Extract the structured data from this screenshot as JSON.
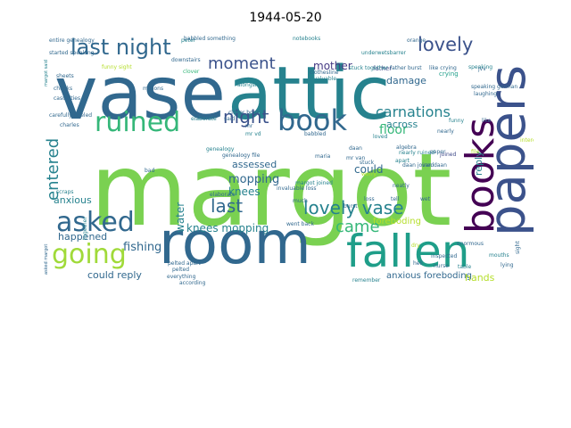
{
  "title": "1944-05-20",
  "palette": {
    "dark_purple": "#440154",
    "indigo": "#3b528b",
    "slate_blue": "#31688e",
    "teal": "#26828e",
    "sea_green": "#1f9e89",
    "green": "#35b779",
    "light_green": "#6ece58",
    "lime": "#b5de2b",
    "yellow": "#fde725"
  },
  "words": [
    {
      "text": "margot",
      "color": "#7ad151"
    },
    {
      "text": "vase",
      "color": "#31688e"
    },
    {
      "text": "attic",
      "color": "#26828e"
    },
    {
      "text": "room",
      "color": "#31688e"
    },
    {
      "text": "papers",
      "color": "#3b528b"
    },
    {
      "text": "fallen",
      "color": "#1f9e89"
    },
    {
      "text": "books",
      "color": "#440154"
    },
    {
      "text": "book",
      "color": "#31688e"
    },
    {
      "text": "asked",
      "color": "#31688e"
    },
    {
      "text": "ruined",
      "color": "#35b779"
    },
    {
      "text": "going",
      "color": "#a0da39"
    },
    {
      "text": "last night",
      "color": "#31688e"
    },
    {
      "text": "lovely",
      "color": "#3b528b"
    },
    {
      "text": "noticed",
      "color": "#26828e"
    },
    {
      "text": "lovely vase",
      "color": "#26828e"
    },
    {
      "text": "moment",
      "color": "#3b528b"
    },
    {
      "text": "night",
      "color": "#3b528b"
    },
    {
      "text": "entered",
      "color": "#26828e"
    },
    {
      "text": "carnations",
      "color": "#26828e"
    },
    {
      "text": "last",
      "color": "#31688e"
    },
    {
      "text": "came",
      "color": "#35b779"
    },
    {
      "text": "floor",
      "color": "#35b779"
    },
    {
      "text": "mopping",
      "color": "#31688e"
    },
    {
      "text": "knees",
      "color": "#26828e"
    },
    {
      "text": "knees mopping",
      "color": "#26828e"
    },
    {
      "text": "fishing",
      "color": "#31688e"
    },
    {
      "text": "mother",
      "color": "#443983"
    },
    {
      "text": "damage",
      "color": "#31688e"
    },
    {
      "text": "across",
      "color": "#26828e"
    },
    {
      "text": "could",
      "color": "#31688e"
    },
    {
      "text": "assessed",
      "color": "#31688e"
    },
    {
      "text": "water",
      "color": "#26828e"
    },
    {
      "text": "anxious",
      "color": "#26828e"
    },
    {
      "text": "foreboding",
      "color": "#b5de2b"
    },
    {
      "text": "happened",
      "color": "#31688e"
    },
    {
      "text": "could reply",
      "color": "#31688e"
    },
    {
      "text": "anxious foreboding",
      "color": "#31688e"
    },
    {
      "text": "hands",
      "color": "#b5de2b"
    },
    {
      "text": "reply",
      "color": "#26828e"
    },
    {
      "text": "father",
      "color": "#3e4989"
    },
    {
      "text": "charles",
      "color": "#31688e"
    },
    {
      "text": "peter",
      "color": "#26828e"
    },
    {
      "text": "algebra",
      "color": "#31688e"
    },
    {
      "text": "genealogy",
      "color": "#26828e"
    },
    {
      "text": "babbled",
      "color": "#31688e"
    },
    {
      "text": "clothesline",
      "color": "#31688e"
    },
    {
      "text": "invaluable",
      "color": "#26828e"
    },
    {
      "text": "elaborate",
      "color": "#31688e"
    },
    {
      "text": "sheets",
      "color": "#31688e"
    },
    {
      "text": "crying",
      "color": "#1f9e89"
    },
    {
      "text": "laughing",
      "color": "#31688e"
    },
    {
      "text": "worry",
      "color": "#b5de2b"
    },
    {
      "text": "pelted",
      "color": "#31688e"
    },
    {
      "text": "speaking",
      "color": "#26828e"
    },
    {
      "text": "clover",
      "color": "#35b779"
    },
    {
      "text": "daan",
      "color": "#31688e"
    },
    {
      "text": "burst",
      "color": "#31688e"
    },
    {
      "text": "joined",
      "color": "#3e4989"
    },
    {
      "text": "together",
      "color": "#26828e"
    },
    {
      "text": "orange",
      "color": "#31688e"
    },
    {
      "text": "everything",
      "color": "#31688e"
    },
    {
      "text": "much",
      "color": "#31688e"
    },
    {
      "text": "nearly",
      "color": "#31688e"
    },
    {
      "text": "stuck",
      "color": "#31688e"
    },
    {
      "text": "apart",
      "color": "#26828e"
    },
    {
      "text": "according",
      "color": "#31688e"
    },
    {
      "text": "remember",
      "color": "#26828e"
    },
    {
      "text": "asked margot",
      "color": "#31688e"
    },
    {
      "text": "margot said",
      "color": "#26828e"
    },
    {
      "text": "entire genealogy",
      "color": "#31688e"
    },
    {
      "text": "stuck together",
      "color": "#26828e"
    },
    {
      "text": "father burst",
      "color": "#31688e"
    },
    {
      "text": "like crying",
      "color": "#31688e"
    },
    {
      "text": "daan joined",
      "color": "#31688e"
    },
    {
      "text": "clover book",
      "color": "#31688e"
    },
    {
      "text": "genealogy file",
      "color": "#31688e"
    },
    {
      "text": "margot joined",
      "color": "#26828e"
    },
    {
      "text": "went back",
      "color": "#31688e"
    },
    {
      "text": "pelted apart",
      "color": "#31688e"
    },
    {
      "text": "nearly ruined",
      "color": "#26828e"
    },
    {
      "text": "invaluable loss",
      "color": "#31688e"
    },
    {
      "text": "carefully peeled",
      "color": "#31688e"
    },
    {
      "text": "speaking german",
      "color": "#31688e"
    },
    {
      "text": "underwetsbarrer",
      "color": "#26828e"
    },
    {
      "text": "babbled something",
      "color": "#31688e"
    },
    {
      "text": "started speaking",
      "color": "#31688e"
    },
    {
      "text": "funny sight",
      "color": "#b5de2b"
    },
    {
      "text": "mr",
      "color": "#31688e"
    },
    {
      "text": "mr vd",
      "color": "#26828e"
    },
    {
      "text": "van daan",
      "color": "#31688e"
    },
    {
      "text": "bad",
      "color": "#31688e"
    },
    {
      "text": "hell",
      "color": "#31688e"
    },
    {
      "text": "sight",
      "color": "#31688e"
    },
    {
      "text": "loss",
      "color": "#31688e"
    },
    {
      "text": "tell",
      "color": "#31688e"
    },
    {
      "text": "like",
      "color": "#31688e"
    },
    {
      "text": "said",
      "color": "#31688e"
    },
    {
      "text": "dry",
      "color": "#b5de2b"
    },
    {
      "text": "paper",
      "color": "#31688e"
    },
    {
      "text": "wet",
      "color": "#31688e"
    },
    {
      "text": "jvv",
      "color": "#31688e"
    },
    {
      "text": "table",
      "color": "#26828e"
    },
    {
      "text": "funny",
      "color": "#26828e"
    },
    {
      "text": "maria",
      "color": "#31688e"
    },
    {
      "text": "alongside",
      "color": "#26828e"
    },
    {
      "text": "mr van",
      "color": "#31688e"
    },
    {
      "text": "file",
      "color": "#b5de2b"
    },
    {
      "text": "loved",
      "color": "#26828e"
    },
    {
      "text": "inspected",
      "color": "#31688e"
    },
    {
      "text": "nurse",
      "color": "#31688e"
    },
    {
      "text": "elaborate",
      "color": "#26828e"
    },
    {
      "text": "interesting",
      "color": "#b5de2b"
    },
    {
      "text": "downstairs",
      "color": "#31688e"
    },
    {
      "text": "millions",
      "color": "#31688e"
    },
    {
      "text": "cheeks",
      "color": "#31688e"
    },
    {
      "text": "notebooks",
      "color": "#26828e"
    },
    {
      "text": "casualties",
      "color": "#31688e"
    },
    {
      "text": "scraps",
      "color": "#26828e"
    },
    {
      "text": "neatly",
      "color": "#31688e"
    },
    {
      "text": "mouths",
      "color": "#26828e"
    },
    {
      "text": "enormous",
      "color": "#31688e"
    },
    {
      "text": "lying",
      "color": "#31688e"
    }
  ]
}
